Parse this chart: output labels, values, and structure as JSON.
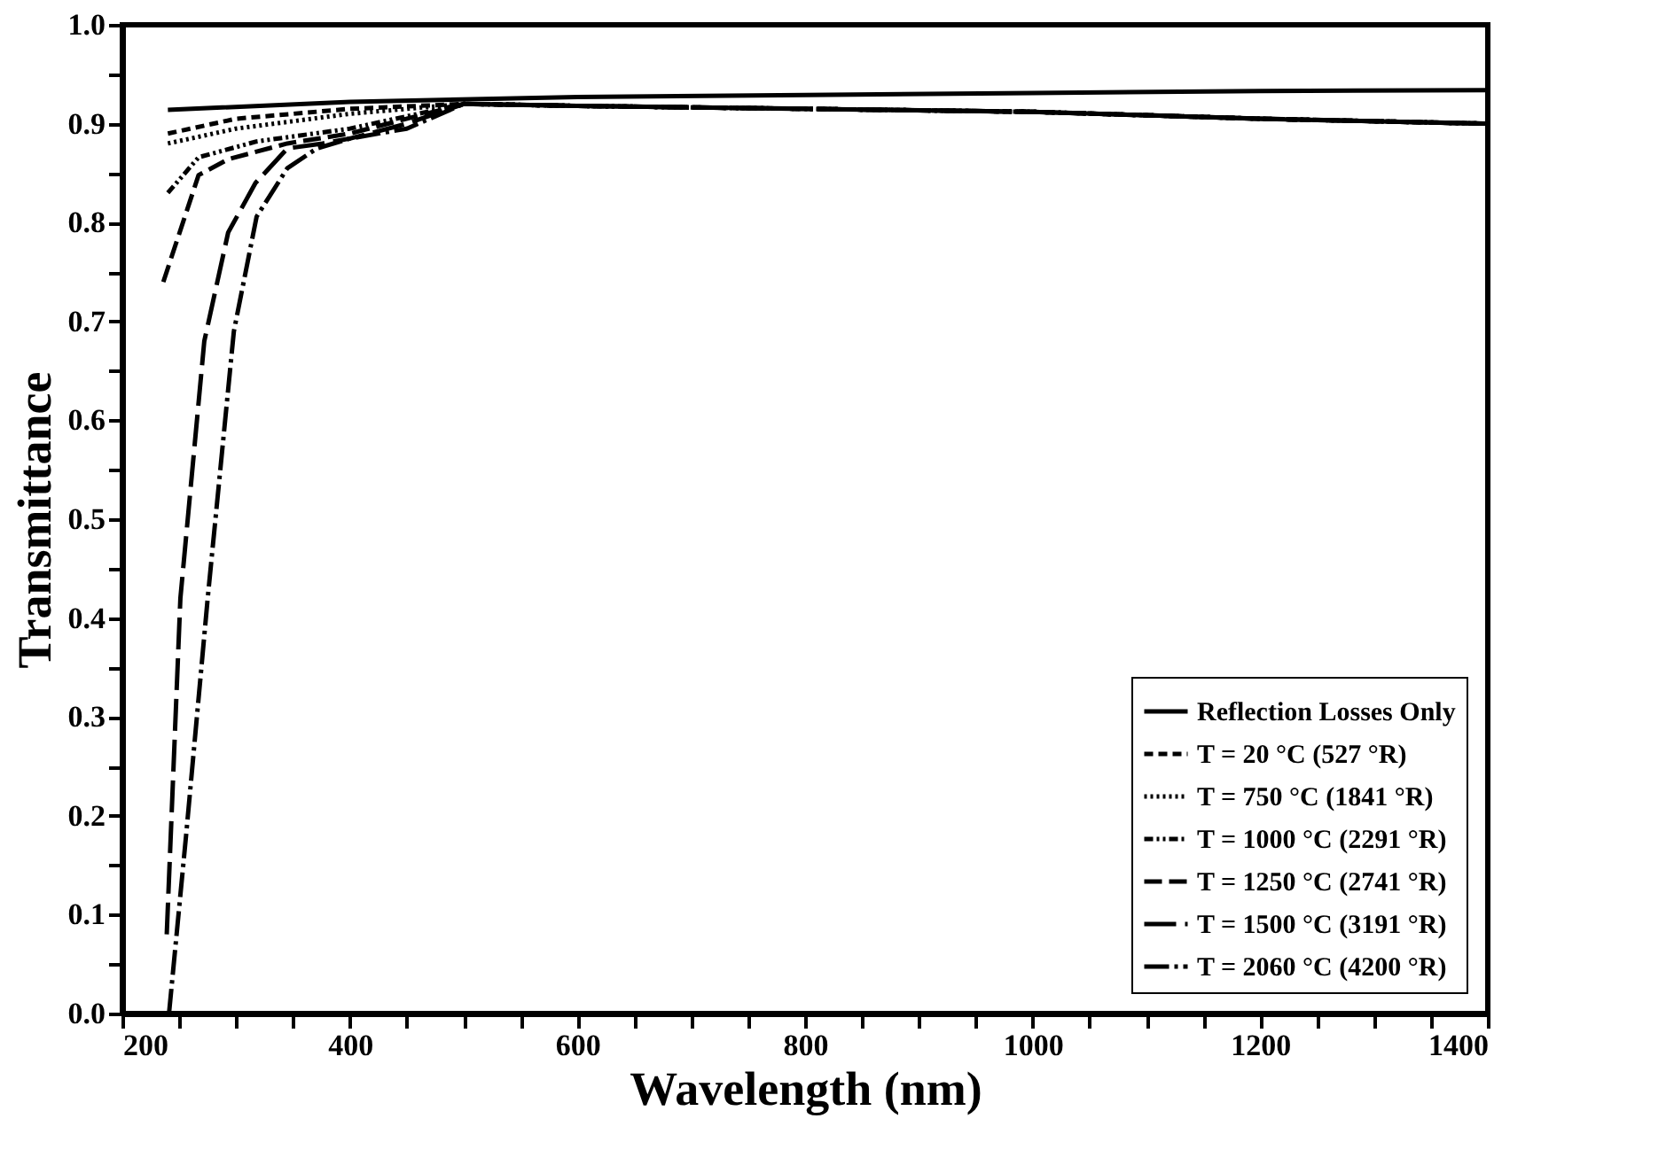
{
  "chart_data": {
    "type": "line",
    "xlabel": "Wavelength (nm)",
    "ylabel": "Transmittance",
    "xlim": [
      200,
      1400
    ],
    "ylim": [
      0,
      1
    ],
    "xticks": [
      200,
      {
        "value": 250,
        "label": null
      },
      {
        "value": 300,
        "label": null
      },
      {
        "value": 350,
        "label": null
      },
      400,
      {
        "value": 450,
        "label": null
      },
      {
        "value": 500,
        "label": null
      },
      {
        "value": 550,
        "label": null
      },
      600,
      {
        "value": 650,
        "label": null
      },
      {
        "value": 700,
        "label": null
      },
      {
        "value": 750,
        "label": null
      },
      800,
      {
        "value": 850,
        "label": null
      },
      {
        "value": 900,
        "label": null
      },
      {
        "value": 950,
        "label": null
      },
      1000,
      {
        "value": 1050,
        "label": null
      },
      {
        "value": 1100,
        "label": null
      },
      {
        "value": 1150,
        "label": null
      },
      1200,
      {
        "value": 1250,
        "label": null
      },
      {
        "value": 1300,
        "label": null
      },
      {
        "value": 1350,
        "label": null
      },
      1400
    ],
    "yticks": [
      {
        "value": 0,
        "label": "0.0"
      },
      {
        "value": 0.05,
        "label": null
      },
      0.1,
      {
        "value": 0.15,
        "label": null
      },
      0.2,
      {
        "value": 0.25,
        "label": null
      },
      0.3,
      {
        "value": 0.35,
        "label": null
      },
      0.4,
      {
        "value": 0.45,
        "label": null
      },
      0.5,
      {
        "value": 0.55,
        "label": null
      },
      0.6,
      {
        "value": 0.65,
        "label": null
      },
      0.7,
      {
        "value": 0.75,
        "label": null
      },
      0.8,
      {
        "value": 0.85,
        "label": null
      },
      0.9,
      {
        "value": 0.95,
        "label": null
      },
      {
        "value": 1,
        "label": "1.0"
      }
    ],
    "grid": false,
    "legend": "bottom right",
    "marker": "none",
    "series": [
      {
        "name": "Reflection Losses Only",
        "color": "#000000",
        "line_style": "solid",
        "x": [
          240,
          400,
          600,
          800,
          1000,
          1200,
          1400
        ],
        "values": [
          0.914,
          0.922,
          0.927,
          0.929,
          0.931,
          0.933,
          0.934
        ]
      },
      {
        "name": "T =   20 °C (527 °R)",
        "color": "#000000",
        "line_style": "dashed",
        "x": [
          240,
          300,
          400,
          500,
          600,
          800,
          1000,
          1200,
          1400
        ],
        "values": [
          0.89,
          0.905,
          0.915,
          0.92,
          0.918,
          0.915,
          0.912,
          0.905,
          0.9
        ]
      },
      {
        "name": "T =  750 °C (1841 °R)",
        "color": "#000000",
        "line_style": "dotted",
        "x": [
          240,
          300,
          400,
          500,
          600,
          800,
          1000,
          1200,
          1400
        ],
        "values": [
          0.88,
          0.895,
          0.91,
          0.92,
          0.918,
          0.915,
          0.912,
          0.905,
          0.9
        ]
      },
      {
        "name": "T = 1000 °C (2291 °R)",
        "color": "#000000",
        "line_style": "dashdotdot",
        "x": [
          240,
          267,
          318,
          400,
          500,
          600,
          800,
          1000,
          1200,
          1400
        ],
        "values": [
          0.83,
          0.866,
          0.882,
          0.895,
          0.92,
          0.918,
          0.915,
          0.912,
          0.905,
          0.9
        ]
      },
      {
        "name": "T = 1250 °C (2741 °R)",
        "color": "#000000",
        "line_style": "longdash",
        "x": [
          236,
          267,
          293,
          345,
          400,
          500,
          600,
          800,
          1000,
          1200,
          1400
        ],
        "values": [
          0.74,
          0.848,
          0.864,
          0.88,
          0.89,
          0.92,
          0.918,
          0.915,
          0.912,
          0.905,
          0.9
        ]
      },
      {
        "name": "T = 1500 °C (3191 °R)",
        "color": "#000000",
        "line_style": "longerdash",
        "x": [
          239,
          251,
          272,
          293,
          317,
          345,
          376,
          400,
          450,
          500,
          600,
          800,
          1000,
          1200,
          1400
        ],
        "values": [
          0.08,
          0.42,
          0.68,
          0.79,
          0.84,
          0.875,
          0.88,
          0.885,
          0.9,
          0.92,
          0.918,
          0.915,
          0.912,
          0.905,
          0.9
        ]
      },
      {
        "name": "T = 2060 °C (4200 °R)",
        "color": "#000000",
        "line_style": "dashdot",
        "x": [
          241,
          256,
          275,
          298,
          318,
          345,
          371,
          400,
          450,
          500,
          600,
          800,
          1000,
          1200,
          1400
        ],
        "values": [
          0,
          0.18,
          0.42,
          0.69,
          0.806,
          0.855,
          0.875,
          0.885,
          0.895,
          0.92,
          0.918,
          0.915,
          0.912,
          0.905,
          0.9
        ]
      }
    ]
  }
}
